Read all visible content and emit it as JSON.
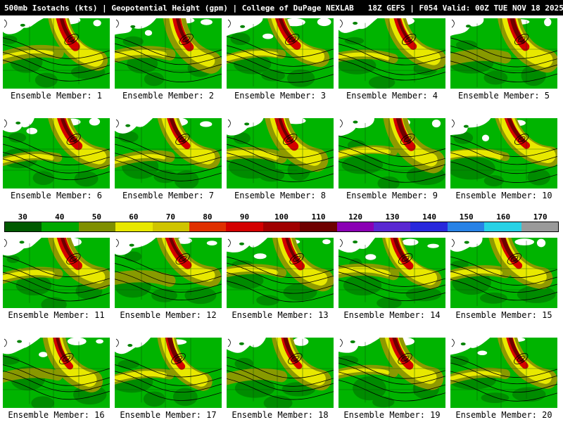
{
  "title": {
    "left": "500mb Isotachs (kts) | Geopotential Height (gpm) | College of DuPage NEXLAB",
    "right": "18Z GEFS | F054 Valid: 00Z TUE NOV 18 2025"
  },
  "panels": {
    "labels": [
      "Ensemble Member: 1",
      "Ensemble Member: 2",
      "Ensemble Member: 3",
      "Ensemble Member: 4",
      "Ensemble Member: 5",
      "Ensemble Member: 6",
      "Ensemble Member: 7",
      "Ensemble Member: 8",
      "Ensemble Member: 9",
      "Ensemble Member: 10",
      "Ensemble Member: 11",
      "Ensemble Member: 12",
      "Ensemble Member: 13",
      "Ensemble Member: 14",
      "Ensemble Member: 15",
      "Ensemble Member: 16",
      "Ensemble Member: 17",
      "Ensemble Member: 18",
      "Ensemble Member: 19",
      "Ensemble Member: 20"
    ]
  },
  "colorbar": {
    "ticks": [
      "30",
      "40",
      "50",
      "60",
      "70",
      "80",
      "90",
      "100",
      "110",
      "120",
      "130",
      "140",
      "150",
      "160",
      "170"
    ],
    "colors": [
      "#005a00",
      "#00a800",
      "#7f8f00",
      "#e8e800",
      "#cfc400",
      "#e03000",
      "#d40000",
      "#a00000",
      "#6e0000",
      "#8a00b4",
      "#5a28d2",
      "#2828dc",
      "#2882e6",
      "#28d2e6",
      "#9a9a9a"
    ]
  },
  "map_palette": {
    "background_green": "#00b400",
    "dark_green": "#008200",
    "olive": "#8f9900",
    "yellow": "#e8e800",
    "red": "#d40000",
    "dark_red": "#6e0000",
    "white_area": "#ffffff",
    "contour": "#000000",
    "border": "#0b4d0b"
  }
}
